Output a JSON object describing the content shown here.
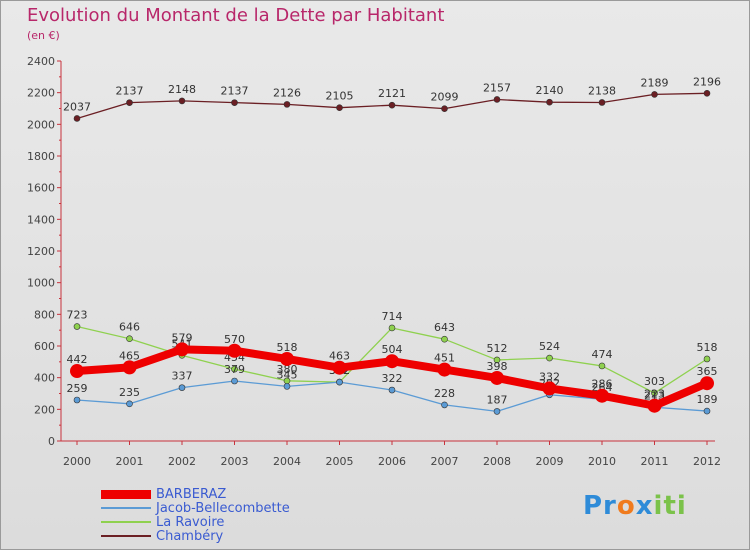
{
  "header": {
    "title": "Evolution du Montant de la Dette par Habitant",
    "subtitle": "(en €)"
  },
  "logo": {
    "text": "Proxiti"
  },
  "chart_data": {
    "type": "line",
    "x": [
      "2000",
      "2001",
      "2002",
      "2003",
      "2004",
      "2005",
      "2006",
      "2007",
      "2008",
      "2009",
      "2010",
      "2011",
      "2012"
    ],
    "ylim": [
      0,
      2400
    ],
    "yticks": [
      0,
      200,
      400,
      600,
      800,
      1000,
      1200,
      1400,
      1600,
      1800,
      2000,
      2200,
      2400
    ],
    "grid": false,
    "legend_position": "bottom-left",
    "series": [
      {
        "name": "Chambéry",
        "color": "#6b1f24",
        "values": [
          2037,
          2137,
          2148,
          2137,
          2126,
          2105,
          2121,
          2099,
          2157,
          2140,
          2138,
          2189,
          2196
        ],
        "labels": [
          "2037",
          "2137",
          "2148",
          "2137",
          "2126",
          "2105",
          "2121",
          "2099",
          "2157",
          "2140",
          "2138",
          "2189",
          "2196"
        ]
      },
      {
        "name": "La Ravoire",
        "color": "#8fd14f",
        "values": [
          723,
          646,
          541,
          454,
          380,
          372,
          714,
          643,
          512,
          524,
          474,
          303,
          518
        ],
        "labels": [
          "723",
          "646",
          "541",
          "454",
          "380",
          "372",
          "714",
          "643",
          "512",
          "524",
          "474",
          "303",
          "518"
        ]
      },
      {
        "name": "Jacob-Bellecombette",
        "color": "#5b9bd5",
        "values": [
          259,
          235,
          337,
          379,
          345,
          372,
          322,
          228,
          187,
          292,
          264,
          213,
          189
        ],
        "labels": [
          "259",
          "235",
          "337",
          "379",
          "345",
          "372",
          "322",
          "228",
          "187",
          "292",
          "264",
          "213",
          "189"
        ]
      },
      {
        "name": "BARBERAZ",
        "color": "#ee0000",
        "values": [
          442,
          465,
          579,
          570,
          518,
          463,
          504,
          451,
          398,
          332,
          286,
          223,
          365
        ],
        "labels": [
          "442",
          "465",
          "579",
          "570",
          "518",
          "463",
          "504",
          "451",
          "398",
          "332",
          "286",
          "223",
          "365"
        ]
      }
    ]
  }
}
